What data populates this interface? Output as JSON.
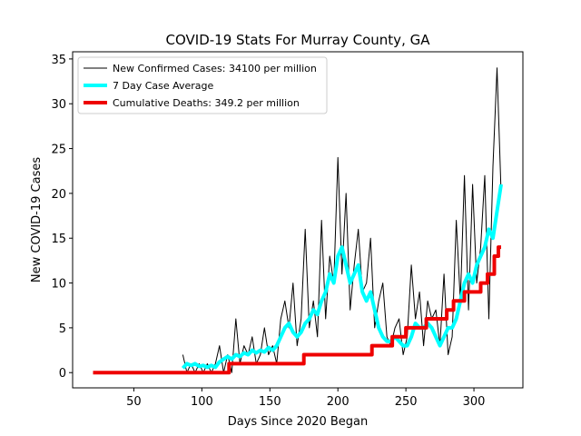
{
  "chart_data": {
    "type": "line",
    "title": "COVID-19 Stats For Murray County, GA",
    "xlabel": "Days Since 2020 Began",
    "ylabel": "New COVID-19 Cases",
    "xlim": [
      5,
      336
    ],
    "ylim": [
      -1.7,
      35.8
    ],
    "xticks": [
      50,
      100,
      150,
      200,
      250,
      300
    ],
    "yticks": [
      0,
      5,
      10,
      15,
      20,
      25,
      30,
      35
    ],
    "legend": "upper left",
    "series": [
      {
        "name": "New Confirmed Cases: 34100 per million",
        "color": "#000000",
        "width": 1,
        "x": [
          86,
          89,
          92,
          95,
          98,
          101,
          104,
          107,
          110,
          113,
          116,
          119,
          122,
          125,
          128,
          131,
          134,
          137,
          140,
          143,
          146,
          149,
          152,
          155,
          158,
          161,
          164,
          167,
          170,
          173,
          176,
          179,
          182,
          185,
          188,
          191,
          194,
          197,
          200,
          203,
          206,
          209,
          212,
          215,
          218,
          221,
          224,
          227,
          230,
          233,
          236,
          239,
          242,
          245,
          248,
          251,
          254,
          257,
          260,
          263,
          266,
          269,
          272,
          275,
          278,
          281,
          284,
          287,
          290,
          293,
          296,
          299,
          302,
          305,
          308,
          311,
          314,
          317,
          320
        ],
        "values": [
          2,
          0,
          1,
          0,
          1,
          0,
          1,
          0,
          1,
          3,
          0,
          2,
          0,
          6,
          1,
          3,
          2,
          4,
          1,
          2,
          5,
          2,
          3,
          1,
          6,
          8,
          5,
          10,
          3,
          6,
          16,
          5,
          8,
          4,
          17,
          6,
          13,
          10,
          24,
          11,
          20,
          7,
          12,
          16,
          9,
          10,
          15,
          5,
          8,
          10,
          4,
          3,
          5,
          6,
          2,
          4,
          12,
          6,
          9,
          3,
          8,
          6,
          7,
          3,
          11,
          2,
          4,
          17,
          8,
          22,
          7,
          21,
          10,
          14,
          22,
          6,
          23,
          34,
          20
        ]
      },
      {
        "name": "7 Day Case Average",
        "color": "#00ffff",
        "width": 4,
        "x": [
          86,
          89,
          92,
          95,
          98,
          101,
          104,
          107,
          110,
          113,
          116,
          119,
          122,
          125,
          128,
          131,
          134,
          137,
          140,
          143,
          146,
          149,
          152,
          155,
          158,
          161,
          164,
          167,
          170,
          173,
          176,
          179,
          182,
          185,
          188,
          191,
          194,
          197,
          200,
          203,
          206,
          209,
          212,
          215,
          218,
          221,
          224,
          227,
          230,
          233,
          236,
          239,
          242,
          245,
          248,
          251,
          254,
          257,
          260,
          263,
          266,
          269,
          272,
          275,
          278,
          281,
          284,
          287,
          290,
          293,
          296,
          299,
          302,
          305,
          308,
          311,
          314,
          317,
          320
        ],
        "values": [
          0.5,
          1,
          0.8,
          1,
          0.7,
          0.8,
          0.6,
          0.8,
          0.6,
          1.2,
          1.5,
          1.8,
          1.5,
          2,
          1.8,
          2.2,
          2,
          2.5,
          2.2,
          2.5,
          2.3,
          2.8,
          2.5,
          3,
          4,
          5,
          5.5,
          4.5,
          4,
          4.5,
          5.5,
          6,
          7,
          6.5,
          8,
          9,
          11,
          10,
          13,
          14,
          12,
          10,
          11,
          12,
          9,
          8,
          9,
          7,
          5,
          4,
          3.5,
          3.5,
          4,
          3.5,
          3,
          3,
          4,
          5.5,
          5,
          5,
          5.5,
          5,
          4,
          3,
          4,
          5,
          5,
          6,
          8,
          10,
          11,
          10,
          12,
          13,
          14,
          16,
          15,
          18,
          21
        ]
      },
      {
        "name": "Cumulative Deaths: 349.2 per million",
        "color": "#ee0000",
        "width": 4,
        "x": [
          20,
          120,
          120,
          175,
          175,
          225,
          225,
          240,
          240,
          250,
          250,
          265,
          265,
          280,
          280,
          285,
          285,
          293,
          293,
          305,
          305,
          310,
          310,
          315,
          315,
          318,
          318,
          320
        ],
        "values": [
          0,
          0,
          1,
          1,
          2,
          2,
          3,
          3,
          4,
          4,
          5,
          5,
          6,
          6,
          7,
          7,
          8,
          8,
          9,
          9,
          10,
          10,
          11,
          11,
          13,
          13,
          14,
          14
        ]
      }
    ]
  }
}
